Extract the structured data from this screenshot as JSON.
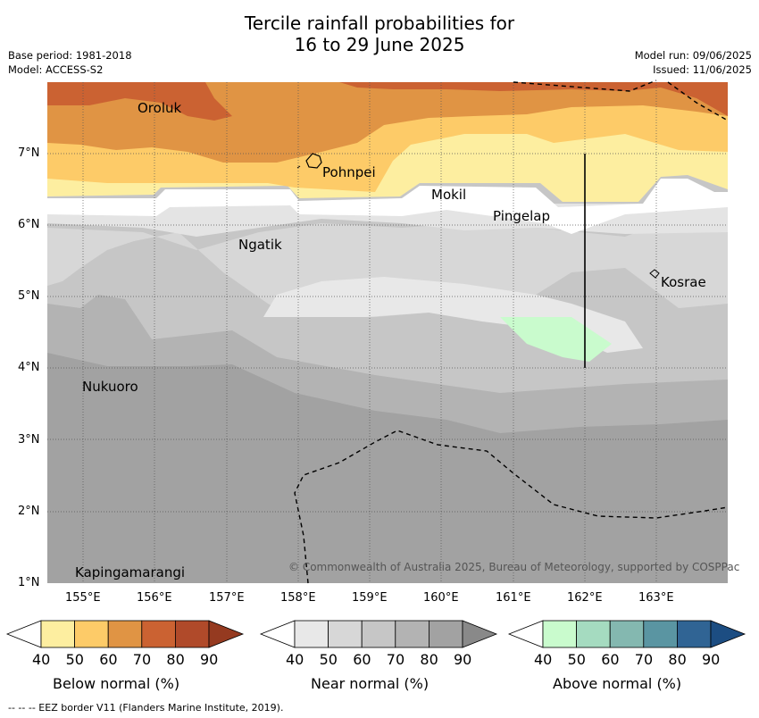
{
  "title": {
    "line1": "Tercile rainfall probabilities for",
    "line2": "16 to 29 June 2025"
  },
  "meta": {
    "base_period": "Base period: 1981-2018",
    "model": "Model: ACCESS-S2",
    "model_run": "Model run: 09/06/2025",
    "issued": "Issued: 11/06/2025"
  },
  "map": {
    "lat_ticks": [
      "1°N",
      "2°N",
      "3°N",
      "4°N",
      "5°N",
      "6°N",
      "7°N"
    ],
    "lon_ticks": [
      "155°E",
      "156°E",
      "157°E",
      "158°E",
      "159°E",
      "160°E",
      "161°E",
      "162°E",
      "163°E"
    ],
    "places": [
      "Oroluk",
      "Pohnpei",
      "Mokil",
      "Pingelap",
      "Ngatik",
      "Kosrae",
      "Nukuoro",
      "Kapingamarangi"
    ],
    "copyright": "© Commonwealth of Australia 2025, Bureau of Meteorology, supported by COSPPac"
  },
  "colorbars": [
    {
      "label": "Below normal (%)",
      "ticks": [
        "40",
        "50",
        "60",
        "70",
        "80",
        "90"
      ],
      "colors": [
        "#fdeea0",
        "#fdcb68",
        "#e09444",
        "#cb6232",
        "#b04a2a",
        "#953a20"
      ]
    },
    {
      "label": "Near normal (%)",
      "ticks": [
        "40",
        "50",
        "60",
        "70",
        "80",
        "90"
      ],
      "colors": [
        "#e8e8e8",
        "#d7d7d7",
        "#c6c6c6",
        "#b3b3b3",
        "#a2a2a2",
        "#898989"
      ]
    },
    {
      "label": "Above normal (%)",
      "ticks": [
        "40",
        "50",
        "60",
        "70",
        "80",
        "90"
      ],
      "colors": [
        "#c9fbcd",
        "#a5dbc0",
        "#84b8b0",
        "#5a95a2",
        "#306494",
        "#1c4d82"
      ]
    }
  ],
  "footer": "--  --  -- EEZ border V11 (Flanders Marine Institute, 2019)."
}
